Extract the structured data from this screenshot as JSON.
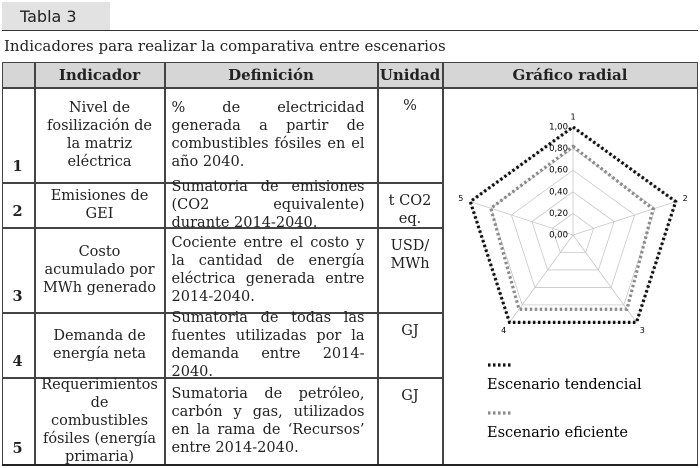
{
  "header": {
    "label": "Tabla 3"
  },
  "caption": "Indicadores para realizar la comparativa entre escenarios",
  "table": {
    "headers": [
      "Indicador",
      "Definición",
      "Unidad",
      "Gráfico radial"
    ],
    "rows": [
      [
        "1",
        "Nivel de fosilización de la matriz eléctrica",
        "% de electricidad generada a partir de combustibles fósiles en el año 2040.",
        "%"
      ],
      [
        "2",
        "Emisiones de GEI",
        "Sumatoria de emisiones (CO2 equivalente) durante 2014-2040.",
        "t CO2 eq."
      ],
      [
        "3",
        "Costo acumulado por MWh generado",
        "Cociente entre el costo y la cantidad de energía eléctrica generada entre 2014-2040.",
        "USD/ MWh"
      ],
      [
        "4",
        "Demanda de energía neta",
        "Sumatoria de todas las fuentes utilizadas por la demanda entre 2014-2040.",
        "GJ"
      ],
      [
        "5",
        "Requerimientos de combustibles fósiles (energía primaria)",
        "Sumatoria de petróleo, carbón y gas, utilizados en la rama de ‘Recursos’ entre 2014-2040.",
        "GJ"
      ]
    ]
  },
  "chart_data": {
    "type": "radar",
    "categories": [
      "1",
      "2",
      "3",
      "4",
      "5"
    ],
    "ylim": [
      0,
      1
    ],
    "yticks": [
      {
        "value": 0,
        "label": "0,00"
      },
      {
        "value": 0.2,
        "label": "0,20"
      },
      {
        "value": 0.4,
        "label": "0,40"
      },
      {
        "value": 0.6,
        "label": "0,60"
      },
      {
        "value": 0.8,
        "label": "0,80"
      },
      {
        "value": 1,
        "label": "1,00"
      }
    ],
    "grid": true,
    "series": [
      {
        "name": "Escenario tendencial",
        "color": "#111111",
        "values": [
          1,
          1,
          1,
          1,
          1
        ]
      },
      {
        "name": "Escenario eficiente",
        "color": "#8a8a8a",
        "values": [
          0.82,
          0.78,
          0.85,
          0.85,
          0.8
        ]
      }
    ]
  }
}
